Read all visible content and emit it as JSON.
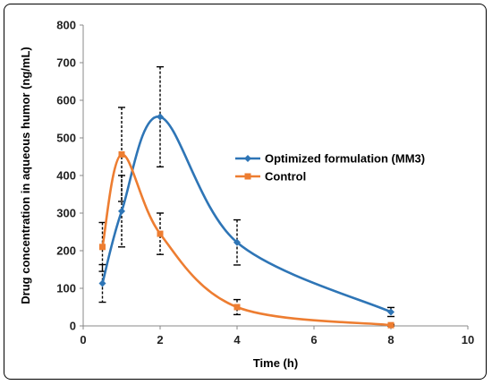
{
  "chart_data": {
    "type": "line",
    "title": "",
    "xlabel": "Time (h)",
    "ylabel": "Drug concentration in aqueous humor (ng/mL)",
    "xlim": [
      0,
      10
    ],
    "ylim": [
      0,
      800
    ],
    "xticks": [
      0,
      2,
      4,
      6,
      8,
      10
    ],
    "yticks": [
      0,
      100,
      200,
      300,
      400,
      500,
      600,
      700,
      800
    ],
    "grid": false,
    "legend_position": "right-middle",
    "smooth": true,
    "series": [
      {
        "name": "Optimized formulation (MM3)",
        "color": "#2E75B6",
        "marker": "diamond",
        "x": [
          0.5,
          1,
          2,
          4,
          8
        ],
        "y": [
          113,
          305,
          556,
          222,
          37
        ],
        "err": [
          50,
          95,
          133,
          60,
          12
        ]
      },
      {
        "name": "Control",
        "color": "#ED7D31",
        "marker": "square",
        "x": [
          0.5,
          1,
          2,
          4,
          8
        ],
        "y": [
          210,
          456,
          245,
          50,
          2
        ],
        "err": [
          65,
          125,
          55,
          20,
          2
        ]
      }
    ]
  }
}
